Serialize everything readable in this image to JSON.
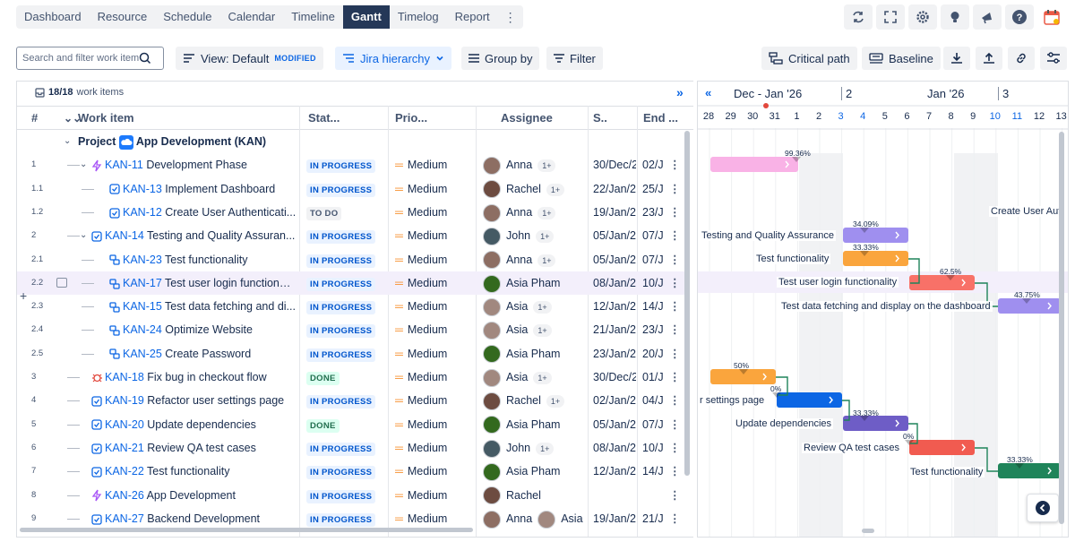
{
  "nav_tabs": [
    {
      "label": "Dashboard",
      "active": false
    },
    {
      "label": "Resource",
      "active": false
    },
    {
      "label": "Schedule",
      "active": false
    },
    {
      "label": "Calendar",
      "active": false
    },
    {
      "label": "Timeline",
      "active": false
    },
    {
      "label": "Gantt",
      "active": true
    },
    {
      "label": "Timelog",
      "active": false
    },
    {
      "label": "Report",
      "active": false
    }
  ],
  "top_icons": [
    "refresh-icon",
    "fullscreen-icon",
    "settings-gear-icon",
    "lightbulb-icon",
    "megaphone-icon",
    "help-icon",
    "calendar-app-icon"
  ],
  "toolbar": {
    "search_placeholder": "Search and filter work item",
    "view_label": "View: Default",
    "view_badge": "MODIFIED",
    "hierarchy_label": "Jira hierarchy",
    "group_label": "Group by",
    "filter_label": "Filter",
    "critical_label": "Critical path",
    "baseline_label": "Baseline"
  },
  "grid": {
    "summary_count": "18/18",
    "summary_label": "work items",
    "headers": {
      "num": "#",
      "work": "Work item",
      "status": "Stat...",
      "priority": "Prio...",
      "assignee": "Assignee",
      "start": "S..",
      "end": "End ..."
    },
    "group_row": {
      "prefix": "Project",
      "name": "App Development (KAN)"
    },
    "rows": [
      {
        "num": "1",
        "key": "KAN-11",
        "title": "Development Phase",
        "type": "epic",
        "indent": 1,
        "status": "IN PROGRESS",
        "priority": "Medium",
        "assignee": "Anna",
        "extra": "1+",
        "start": "30/Dec/2",
        "end": "02/J"
      },
      {
        "num": "1.1",
        "key": "KAN-13",
        "title": "Implement Dashboard",
        "type": "task",
        "indent": 2,
        "status": "IN PROGRESS",
        "priority": "Medium",
        "assignee": "Rachel",
        "extra": "1+",
        "start": "22/Jan/26",
        "end": "25/J"
      },
      {
        "num": "1.2",
        "key": "KAN-12",
        "title": "Create User Authenticati...",
        "type": "task",
        "indent": 2,
        "status": "TO DO",
        "priority": "Medium",
        "assignee": "Anna",
        "extra": "1+",
        "start": "19/Jan/26",
        "end": "23/J"
      },
      {
        "num": "2",
        "key": "KAN-14",
        "title": "Testing and Quality Assuran...",
        "type": "task",
        "indent": 1,
        "status": "IN PROGRESS",
        "priority": "Medium",
        "assignee": "John",
        "extra": "1+",
        "start": "05/Jan/26",
        "end": "07/J"
      },
      {
        "num": "2.1",
        "key": "KAN-23",
        "title": "Test functionality",
        "type": "subtask",
        "indent": 2,
        "status": "IN PROGRESS",
        "priority": "Medium",
        "assignee": "Anna",
        "extra": "1+",
        "start": "05/Jan/26",
        "end": "07/J"
      },
      {
        "num": "2.2",
        "key": "KAN-17",
        "title": "Test user login functional...",
        "type": "subtask",
        "indent": 2,
        "status": "IN PROGRESS",
        "priority": "Medium",
        "assignee": "Asia Pham",
        "extra": "",
        "start": "08/Jan/26",
        "end": "10/J",
        "highlight": true
      },
      {
        "num": "2.3",
        "key": "KAN-15",
        "title": "Test data fetching and di...",
        "type": "subtask",
        "indent": 2,
        "status": "IN PROGRESS",
        "priority": "Medium",
        "assignee": "Asia",
        "extra": "1+",
        "start": "12/Jan/26",
        "end": "14/J"
      },
      {
        "num": "2.4",
        "key": "KAN-24",
        "title": "Optimize Website",
        "type": "subtask",
        "indent": 2,
        "status": "IN PROGRESS",
        "priority": "Medium",
        "assignee": "Asia",
        "extra": "1+",
        "start": "21/Jan/26",
        "end": "23/J"
      },
      {
        "num": "2.5",
        "key": "KAN-25",
        "title": "Create Password",
        "type": "subtask",
        "indent": 2,
        "status": "IN PROGRESS",
        "priority": "Medium",
        "assignee": "Asia Pham",
        "extra": "",
        "start": "23/Jan/26",
        "end": "20/J"
      },
      {
        "num": "3",
        "key": "KAN-18",
        "title": "Fix bug in checkout flow",
        "type": "bug",
        "indent": 1,
        "status": "DONE",
        "priority": "Medium",
        "assignee": "Asia",
        "extra": "1+",
        "start": "30/Dec/26",
        "end": "01/J"
      },
      {
        "num": "4",
        "key": "KAN-19",
        "title": "Refactor user settings page",
        "type": "task",
        "indent": 1,
        "status": "IN PROGRESS",
        "priority": "Medium",
        "assignee": "Rachel",
        "extra": "1+",
        "start": "02/Jan/26",
        "end": "04/J"
      },
      {
        "num": "5",
        "key": "KAN-20",
        "title": "Update dependencies",
        "type": "task",
        "indent": 1,
        "status": "DONE",
        "priority": "Medium",
        "assignee": "Asia Pham",
        "extra": "",
        "start": "05/Jan/26",
        "end": "07/J"
      },
      {
        "num": "6",
        "key": "KAN-21",
        "title": "Review QA test cases",
        "type": "task",
        "indent": 1,
        "status": "IN PROGRESS",
        "priority": "Medium",
        "assignee": "John",
        "extra": "1+",
        "start": "08/Jan/26",
        "end": "10/J"
      },
      {
        "num": "7",
        "key": "KAN-22",
        "title": "Test functionality",
        "type": "task",
        "indent": 1,
        "status": "IN PROGRESS",
        "priority": "Medium",
        "assignee": "Asia Pham",
        "extra": "",
        "start": "12/Jan/26",
        "end": "14/J"
      },
      {
        "num": "8",
        "key": "KAN-26",
        "title": "App Development",
        "type": "epic",
        "indent": 1,
        "status": "IN PROGRESS",
        "priority": "Medium",
        "assignee": "Rachel",
        "extra": "",
        "start": "",
        "end": ""
      },
      {
        "num": "9",
        "key": "KAN-27",
        "title": "Backend Development",
        "type": "task",
        "indent": 1,
        "status": "IN PROGRESS",
        "priority": "Medium",
        "assignee": "Anna",
        "extra": "",
        "second_assignee": "Asia",
        "start": "19/Jan/26",
        "end": "21/J"
      }
    ]
  },
  "gantt": {
    "periods": [
      "Dec - Jan '26",
      "2",
      "Jan '26",
      "3"
    ],
    "days": [
      "28",
      "29",
      "30",
      "31",
      "1",
      "2",
      "3",
      "4",
      "5",
      "6",
      "7",
      "8",
      "9",
      "10",
      "11",
      "12",
      "13"
    ],
    "labels": [
      "Create User Aut",
      "Testing and Quality Assurance",
      "Test functionality",
      "Test user login functionality",
      "Test data fetching and display on the dashboard",
      "r settings page",
      "Update dependencies",
      "Review QA test cases",
      "Test functionality"
    ],
    "percents": [
      "99.36%",
      "34.09%",
      "33.33%",
      "62.5%",
      "43.75%",
      "50%",
      "0%",
      "33.33%",
      "0%",
      "33.33%"
    ]
  }
}
